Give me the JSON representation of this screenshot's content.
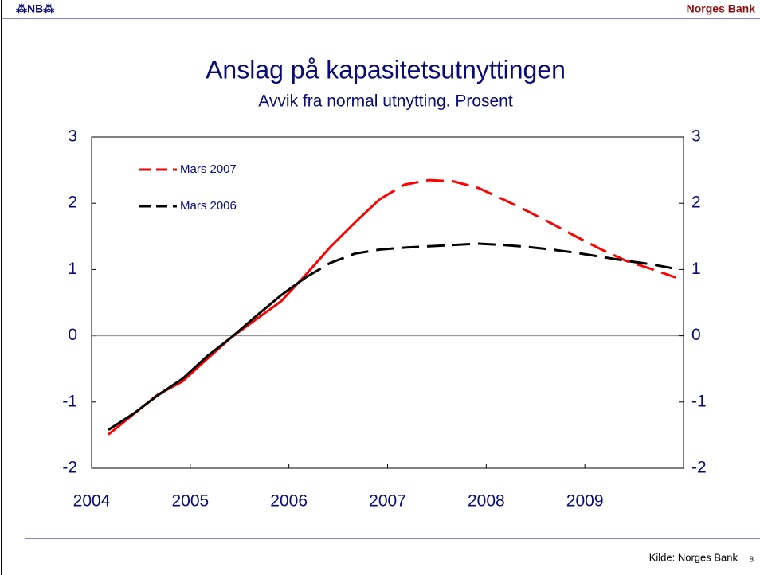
{
  "header": {
    "logo": "⁂NB⁂",
    "brand": "Norges Bank"
  },
  "footer": {
    "source": "Kilde: Norges Bank",
    "page": "8"
  },
  "chart_data": {
    "type": "line",
    "title": "Anslag på kapasitetsutnyttingen",
    "subtitle": "Avvik fra normal utnytting. Prosent",
    "x": [
      2004.17,
      2004.42,
      2004.67,
      2004.92,
      2005.17,
      2005.42,
      2005.67,
      2005.92,
      2006.17,
      2006.42,
      2006.67,
      2006.92,
      2007.17,
      2007.42,
      2007.67,
      2007.92,
      2008.17,
      2008.42,
      2008.67,
      2008.92,
      2009.17,
      2009.42,
      2009.67,
      2009.92
    ],
    "series": [
      {
        "name": "Mars 2007",
        "color": "#ff0000",
        "solid_until": 2006.92,
        "values": [
          -1.49,
          -1.19,
          -0.89,
          -0.69,
          -0.35,
          -0.02,
          0.25,
          0.52,
          0.92,
          1.34,
          1.71,
          2.06,
          2.28,
          2.35,
          2.33,
          2.23,
          2.06,
          1.88,
          1.69,
          1.49,
          1.3,
          1.13,
          1.01,
          0.88
        ]
      },
      {
        "name": "Mars 2006",
        "color": "#000000",
        "solid_until": 2006.17,
        "values": [
          -1.42,
          -1.18,
          -0.9,
          -0.65,
          -0.31,
          -0.02,
          0.3,
          0.61,
          0.88,
          1.1,
          1.24,
          1.3,
          1.33,
          1.35,
          1.37,
          1.39,
          1.37,
          1.34,
          1.3,
          1.25,
          1.19,
          1.13,
          1.08,
          1.01
        ]
      }
    ],
    "xlim": [
      2004,
      2010
    ],
    "xticks": [
      2004,
      2005,
      2006,
      2007,
      2008,
      2009
    ],
    "ylim": [
      -2,
      3
    ],
    "yticks": [
      -2,
      -1,
      0,
      1,
      2,
      3
    ],
    "y2lim": [
      -2,
      3
    ],
    "y2ticks": [
      -2,
      -1,
      0,
      1,
      2,
      3
    ],
    "legend": "upper left"
  }
}
